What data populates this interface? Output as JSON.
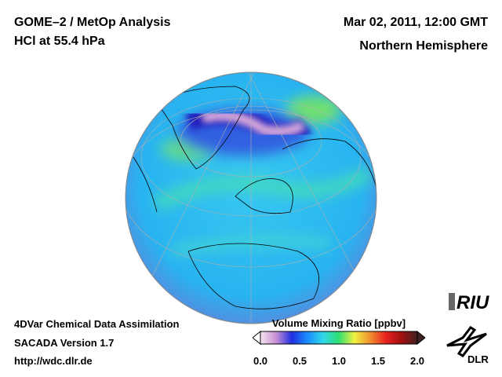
{
  "header": {
    "title_line1": "GOME–2 / MetOp Analysis",
    "title_line2": "HCl at 55.4 hPa",
    "date": "Mar 02, 2011, 12:00 GMT",
    "region": "Northern Hemisphere"
  },
  "footer": {
    "line1": "4DVar Chemical Data Assimilation",
    "line2": "SACADA Version 1.7",
    "url": "http://wdc.dlr.de"
  },
  "colorbar": {
    "title": "Volume Mixing Ratio [ppbv]",
    "ticks": [
      "0.0",
      "0.5",
      "1.0",
      "1.5",
      "2.0"
    ],
    "range": [
      0.0,
      2.0
    ],
    "colors": [
      "#f4e6ee",
      "#c98fd6",
      "#2030e0",
      "#1a8cff",
      "#30d8e8",
      "#30e070",
      "#f0f040",
      "#f09030",
      "#e82020",
      "#a01010",
      "#402020"
    ]
  },
  "logos": {
    "riu": "RIU",
    "dlr": "DLR"
  }
}
